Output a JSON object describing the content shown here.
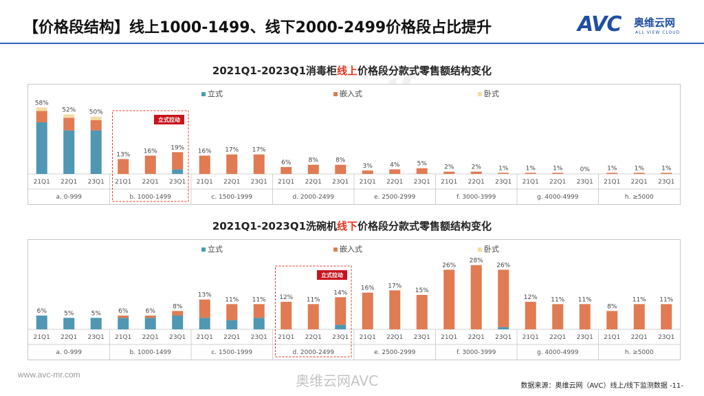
{
  "page": {
    "title": "【价格段结构】线上1000-1499、线下2000-2499价格段占比提升",
    "footer_url": "www.avc-mr.com",
    "weibo_mark": "奥维云网AVC",
    "source": "数据来源：奥维云网（AVC）线上/线下监测数据 -11-"
  },
  "logo": {
    "mark": "AVC",
    "cn": "奥维云网",
    "en": "ALL VIEW CLOUD"
  },
  "colors": {
    "vertical": "#4f97b3",
    "embedded": "#e07b53",
    "horizontal": "#f2dca5",
    "highlight": "#e8351f"
  },
  "chart_data": [
    {
      "type": "bar",
      "title_parts": [
        "2021Q1-2023Q1消毒柜",
        "线上",
        "价格段分款式零售额结构变化"
      ],
      "legend": [
        "立式",
        "嵌入式",
        "卧式"
      ],
      "groups": [
        "a. 0-999",
        "b. 1000-1499",
        "c. 1500-1999",
        "d. 2000-2499",
        "e. 2500-2999",
        "f. 3000-3999",
        "g. 4000-4999",
        "h. ≥5000"
      ],
      "periods": [
        "21Q1",
        "22Q1",
        "23Q1"
      ],
      "totals": [
        58,
        52,
        50,
        13,
        16,
        19,
        16,
        17,
        17,
        6,
        8,
        8,
        3,
        4,
        5,
        2,
        2,
        1,
        1,
        1,
        0,
        1,
        1,
        1
      ],
      "total_labels": [
        "58%",
        "52%",
        "50%",
        "13%",
        "16%",
        "19%",
        "16%",
        "17%",
        "17%",
        "6%",
        "8%",
        "8%",
        "3%",
        "4%",
        "5%",
        "2%",
        "2%",
        "1%",
        "1%",
        "1%",
        "0%",
        "1%",
        "1%",
        "1%"
      ],
      "series": [
        {
          "name": "立式",
          "values": [
            45,
            38,
            38,
            0,
            0,
            4,
            0,
            0,
            0,
            0,
            0,
            0,
            0,
            0,
            0,
            0,
            0,
            0,
            0,
            0,
            0,
            0,
            0,
            0
          ]
        },
        {
          "name": "嵌入式",
          "values": [
            10,
            11,
            9,
            13,
            16,
            15,
            16,
            17,
            17,
            6,
            8,
            8,
            3,
            4,
            5,
            2,
            2,
            1,
            1,
            1,
            0,
            1,
            1,
            1
          ]
        },
        {
          "name": "卧式",
          "values": [
            3,
            3,
            3,
            0,
            0,
            0,
            0,
            0,
            0,
            0,
            0,
            0,
            0,
            0,
            0,
            0,
            0,
            0,
            0,
            0,
            0,
            0,
            0,
            0
          ]
        }
      ],
      "ylim": [
        0,
        60
      ],
      "highlight_group": 1,
      "annotation": "立式拉动"
    },
    {
      "type": "bar",
      "title_parts": [
        "2021Q1-2023Q1洗碗机",
        "线下",
        "价格段分款式零售额结构变化"
      ],
      "legend": [
        "立式",
        "嵌入式",
        "卧式"
      ],
      "groups": [
        "a. 0-999",
        "b. 1000-1499",
        "c. 1500-1999",
        "d. 2000-2499",
        "e. 2500-2999",
        "f. 3000-3999",
        "g. 4000-4999",
        "h. ≥5000"
      ],
      "periods": [
        "21Q1",
        "22Q1",
        "23Q1"
      ],
      "totals": [
        6,
        5,
        5,
        6,
        6,
        8,
        13,
        11,
        11,
        12,
        11,
        14,
        16,
        17,
        15,
        26,
        28,
        26,
        12,
        11,
        11,
        8,
        11,
        11
      ],
      "total_labels": [
        "6%",
        "5%",
        "5%",
        "6%",
        "6%",
        "8%",
        "13%",
        "11%",
        "11%",
        "12%",
        "11%",
        "14%",
        "16%",
        "17%",
        "15%",
        "26%",
        "28%",
        "26%",
        "12%",
        "11%",
        "11%",
        "8%",
        "11%",
        "11%"
      ],
      "series": [
        {
          "name": "立式",
          "values": [
            6,
            5,
            5,
            5,
            5,
            6,
            5,
            4,
            5,
            0,
            0,
            2,
            0,
            0,
            0,
            0,
            0,
            1,
            0,
            0,
            0,
            0,
            0,
            0
          ]
        },
        {
          "name": "嵌入式",
          "values": [
            0,
            0,
            0,
            1,
            1,
            2,
            8,
            7,
            6,
            12,
            11,
            12,
            16,
            17,
            15,
            26,
            28,
            25,
            12,
            11,
            11,
            8,
            11,
            11
          ]
        },
        {
          "name": "卧式",
          "values": [
            0,
            0,
            0,
            0,
            0,
            0,
            0,
            0,
            0,
            0,
            0,
            0,
            0,
            0,
            0,
            0,
            0,
            0,
            0,
            0,
            0,
            0,
            0,
            0
          ]
        }
      ],
      "ylim": [
        0,
        30
      ],
      "highlight_group": 3,
      "annotation": "立式拉动"
    }
  ]
}
